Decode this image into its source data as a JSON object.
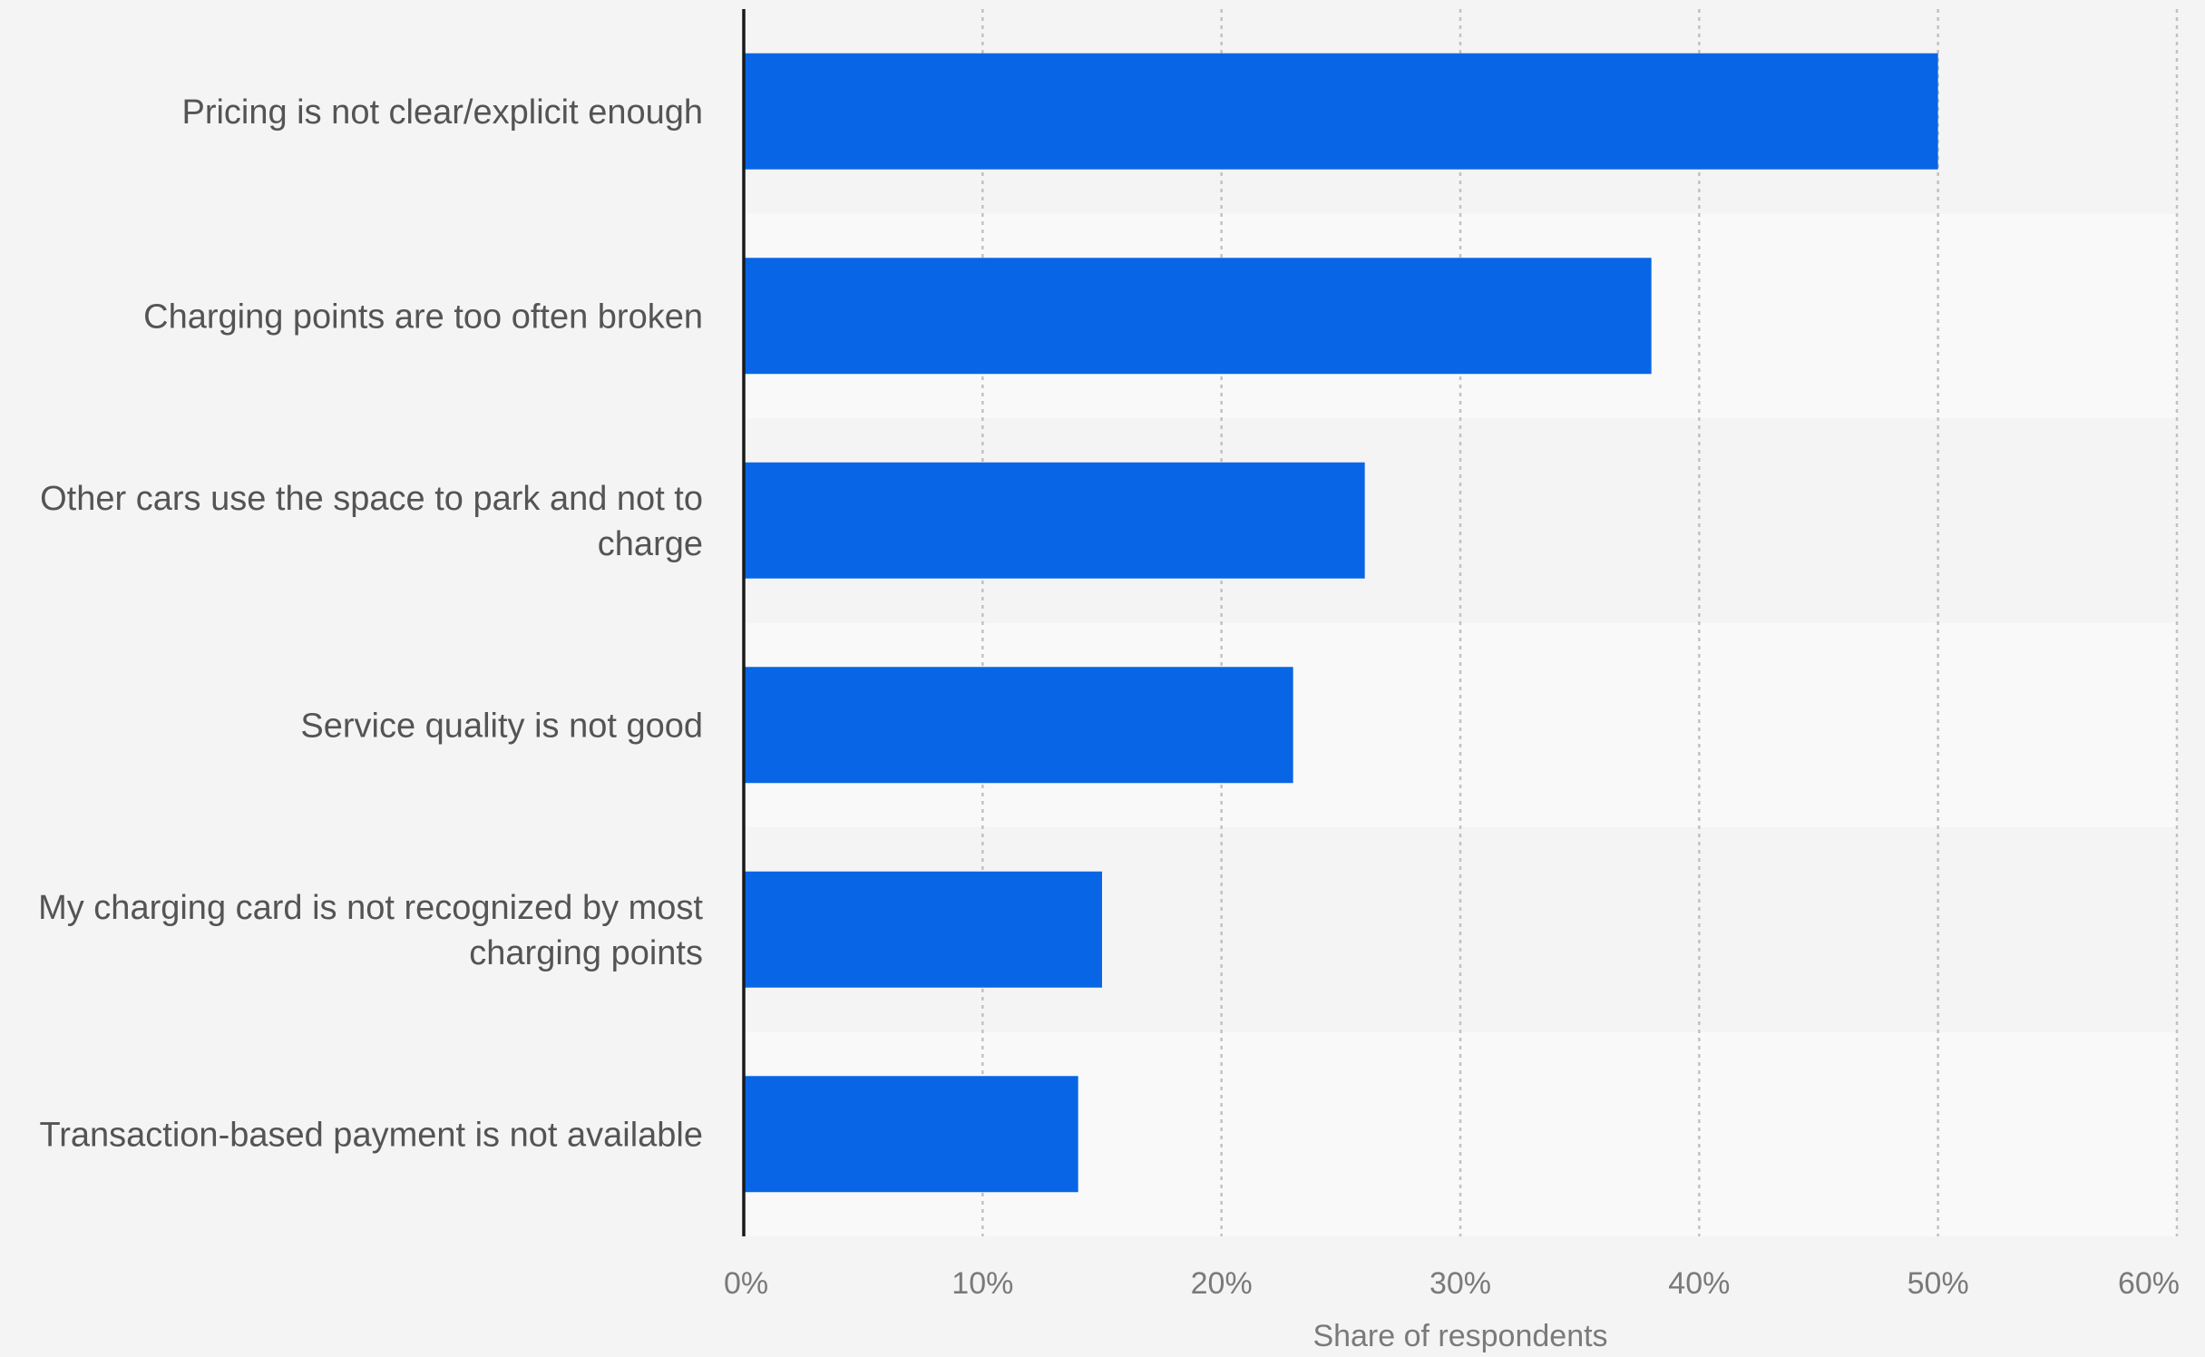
{
  "chart_data": {
    "type": "bar",
    "orientation": "horizontal",
    "categories": [
      "Pricing is not clear/explicit enough",
      "Charging points are too often broken",
      "Other cars use the space to park and not to charge",
      "Service quality is not good",
      "My charging card is not recognized by most charging points",
      "Transaction-based payment is not available"
    ],
    "values": [
      50,
      38,
      26,
      23,
      15,
      14
    ],
    "xlabel": "Share of respondents",
    "ylabel": "",
    "xlim": [
      0,
      60
    ],
    "x_ticks": [
      "0%",
      "10%",
      "20%",
      "30%",
      "40%",
      "50%",
      "60%"
    ],
    "grid": true,
    "colors": {
      "bar": "#0866e6",
      "band_light": "#f9f9f9",
      "band_dark": "#f4f4f4",
      "axis": "#1a1a1a"
    }
  }
}
